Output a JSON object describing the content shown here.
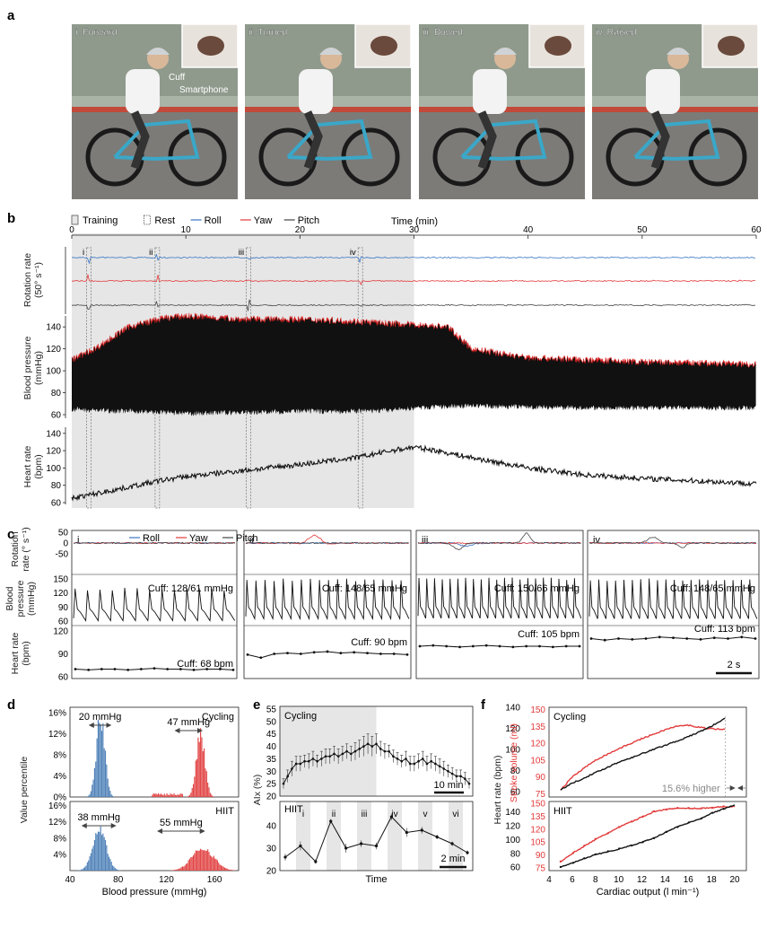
{
  "panel_labels": {
    "a": "a",
    "b": "b",
    "c": "c",
    "d": "d",
    "e": "e",
    "f": "f"
  },
  "colors": {
    "roll": "#3a76c4",
    "yaw": "#e23a3a",
    "pitch": "#444444",
    "bp_black": "#111111",
    "bp_red": "#e02020",
    "bar_blue": "#4f81b8",
    "bar_red": "#e24444",
    "shade": "#e6e6e6",
    "photo_bg": "#c9c4bb"
  },
  "panel_a": {
    "photos": [
      {
        "label": "i. Forward",
        "annotations": [
          "Cuff",
          "Smartphone"
        ]
      },
      {
        "label": "ii. Turned",
        "annotations": []
      },
      {
        "label": "iii. Bowed",
        "annotations": []
      },
      {
        "label": "iv. Raised",
        "annotations": []
      }
    ]
  },
  "panel_b": {
    "legend": [
      {
        "label": "Training",
        "kind": "shade-box"
      },
      {
        "label": "Rest",
        "kind": "box"
      },
      {
        "label": "Roll",
        "kind": "roll"
      },
      {
        "label": "Yaw",
        "kind": "yaw"
      },
      {
        "label": "Pitch",
        "kind": "pitch"
      }
    ],
    "time_label": "Time (min)",
    "ylabel_rotation": [
      "Rotation rate",
      "(50° s⁻¹)"
    ],
    "ylabel_bp": [
      "Blood pressure",
      "(mmHg)"
    ],
    "ylabel_hr": [
      "Heart rate",
      "(bpm)"
    ],
    "markers": [
      "i",
      "ii",
      "iii",
      "iv"
    ]
  },
  "panel_c": {
    "legend": [
      "Roll",
      "Yaw",
      "Pitch"
    ],
    "ylabel_rotation": [
      "Rotation",
      "rate (° s⁻¹)"
    ],
    "ylabel_bp": [
      "Blood",
      "pressure",
      "(mmHg)"
    ],
    "ylabel_hr": [
      "Heart rate",
      "(bpm)"
    ],
    "columns": [
      {
        "label": "i",
        "cuff_bp": "Cuff: 128/61 mmHg",
        "cuff_hr": "Cuff: 68 bpm"
      },
      {
        "label": "ii",
        "cuff_bp": "Cuff: 148/65 mmHg",
        "cuff_hr": "Cuff: 90 bpm"
      },
      {
        "label": "iii",
        "cuff_bp": "Cuff: 150/66 mmHg",
        "cuff_hr": "Cuff: 105 bpm"
      },
      {
        "label": "iv",
        "cuff_bp": "Cuff: 148/65 mmHg",
        "cuff_hr": "Cuff: 113 bpm"
      }
    ],
    "scale_bar": "2 s"
  },
  "panel_d": {
    "ylabel": "Value percentile",
    "xlabel": "Blood pressure (mmHg)",
    "top": {
      "title": "Cycling",
      "blue_range": "20 mmHg",
      "red_range": "47 mmHg"
    },
    "bottom": {
      "title": "HIIT",
      "blue_range": "38 mmHg",
      "red_range": "55 mmHg"
    }
  },
  "panel_e": {
    "ylabel": "AIx (%)",
    "xlabel": "Time",
    "top": {
      "title": "Cycling",
      "scale_bar": "10 min"
    },
    "bottom": {
      "title": "HIIT",
      "scale_bar": "2 min",
      "phases": [
        "i",
        "ii",
        "iii",
        "iv",
        "v",
        "vi"
      ]
    }
  },
  "panel_f": {
    "ylabel_left": "Heart rate (bpm)",
    "ylabel_right": "Stroke volume (ml)",
    "xlabel": "Cardiac output (l min⁻¹)",
    "top": {
      "title": "Cycling",
      "annotation": "15.6% higher"
    },
    "bottom": {
      "title": "HIIT"
    }
  },
  "chart_data": [
    {
      "type": "line",
      "id": "b",
      "xlabel": "Time (min)",
      "xlim": [
        0,
        60
      ],
      "xticks": [
        0,
        10,
        20,
        30,
        40,
        50,
        60
      ],
      "training_period_min": [
        0,
        30
      ],
      "event_times_min": {
        "i": 1.5,
        "ii": 7.5,
        "iii": 15.5,
        "iv": 25.3
      },
      "series": [
        {
          "name": "Blood pressure systolic envelope",
          "x": [
            0,
            2,
            5,
            8,
            10,
            15,
            20,
            25,
            28,
            30,
            33,
            35,
            40,
            45,
            50,
            55,
            60
          ],
          "values": [
            110,
            120,
            140,
            148,
            150,
            147,
            147,
            145,
            143,
            142,
            140,
            120,
            112,
            110,
            108,
            107,
            106
          ]
        },
        {
          "name": "Blood pressure diastolic envelope",
          "x": [
            0,
            2,
            5,
            8,
            10,
            15,
            20,
            25,
            28,
            30,
            35,
            40,
            45,
            50,
            55,
            60
          ],
          "values": [
            65,
            64,
            63,
            62,
            61,
            62,
            63,
            63,
            64,
            66,
            68,
            67,
            66,
            66,
            66,
            66
          ]
        },
        {
          "name": "Heart rate",
          "x": [
            0,
            2,
            5,
            8,
            10,
            15,
            20,
            25,
            28,
            30,
            32,
            35,
            40,
            45,
            50,
            55,
            60
          ],
          "values": [
            65,
            70,
            78,
            86,
            90,
            97,
            104,
            112,
            120,
            124,
            120,
            112,
            100,
            92,
            88,
            85,
            82
          ]
        }
      ],
      "ylim_bp": [
        60,
        150
      ],
      "yticks_bp": [
        60,
        80,
        100,
        120,
        140
      ],
      "ylim_hr": [
        60,
        145
      ],
      "yticks_hr": [
        60,
        80,
        100,
        120,
        140
      ]
    },
    {
      "type": "line",
      "id": "c",
      "yticks_rotation": [
        -50,
        0,
        50
      ],
      "yticks_bp": [
        60,
        90,
        120,
        150
      ],
      "yticks_hr": [
        60,
        90,
        120
      ],
      "heart_rate_traces": [
        [
          70,
          69,
          70,
          70,
          69,
          70,
          71,
          70,
          70,
          69,
          70,
          70,
          69
        ],
        [
          89,
          85,
          90,
          91,
          90,
          92,
          93,
          91,
          92,
          91,
          90,
          90,
          89
        ],
        [
          100,
          101,
          100,
          99,
          100,
          101,
          100,
          99,
          100,
          100,
          99,
          100,
          100
        ],
        [
          110,
          108,
          110,
          109,
          110,
          112,
          111,
          110,
          109,
          111,
          110,
          112,
          110
        ]
      ],
      "bp_systolic": [
        128,
        148,
        150,
        148
      ],
      "bp_diastolic": [
        61,
        65,
        66,
        65
      ],
      "beats_per_window": [
        13,
        18,
        21,
        20
      ]
    },
    {
      "type": "bar",
      "id": "d",
      "xlabel": "Blood pressure (mmHg)",
      "ylabel": "Value percentile",
      "xlim": [
        40,
        180
      ],
      "xticks": [
        40,
        80,
        120,
        160
      ],
      "ylim": [
        0,
        17
      ],
      "yticks": [
        0,
        4,
        8,
        12,
        16
      ],
      "yticklabels": [
        "0%",
        "4%",
        "8%",
        "12%",
        "16%"
      ],
      "panels": [
        {
          "name": "Cycling",
          "diastolic_peak": {
            "center": 65,
            "height": 15,
            "sd": 3.5
          },
          "systolic_peak": {
            "center": 148,
            "height": 12,
            "sd": 3.5
          },
          "systolic_tail_from": 108
        },
        {
          "name": "HIIT",
          "diastolic_peak": {
            "center": 64,
            "height": 10.5,
            "sd": 5.5
          },
          "systolic_peak": {
            "center": 150,
            "height": 5.5,
            "sd": 9
          }
        }
      ]
    },
    {
      "type": "line",
      "id": "e",
      "ylabel": "AIx (%)",
      "top": {
        "title": "Cycling",
        "ylim": [
          20,
          55
        ],
        "yticks": [
          20,
          25,
          30,
          35,
          40,
          45,
          50,
          55
        ],
        "values": [
          25,
          28,
          31,
          33,
          33,
          34,
          34,
          35,
          34,
          35,
          36,
          36,
          37,
          36,
          37,
          38,
          37,
          38,
          39,
          40,
          41,
          40,
          41,
          39,
          38,
          38,
          36,
          35,
          34,
          35,
          33,
          33,
          34,
          35,
          33,
          34,
          33,
          32,
          31,
          30,
          29,
          28,
          28,
          27,
          25
        ],
        "error": [
          2,
          2.5,
          3,
          3,
          3,
          2.5,
          3,
          3,
          2.5,
          3,
          3,
          3,
          3,
          3,
          3,
          3,
          3,
          3.5,
          3.5,
          4,
          4,
          4,
          4,
          3,
          3,
          2.5,
          2.5,
          2.5,
          2.5,
          3,
          3,
          3,
          3,
          3,
          3,
          3,
          3,
          3,
          3,
          2.5,
          2.5,
          2.5,
          2.5,
          2.5,
          2
        ]
      },
      "bottom": {
        "title": "HIIT",
        "ylim": [
          20,
          50
        ],
        "yticks": [
          20,
          30,
          40
        ],
        "values": [
          26,
          31,
          24,
          42,
          30,
          32,
          31,
          44,
          37,
          38,
          35,
          32,
          28
        ],
        "error": [
          1.5,
          2,
          1,
          1,
          2,
          1.5,
          1.5,
          1.5,
          2,
          1.5,
          1,
          1,
          1
        ]
      }
    },
    {
      "type": "line",
      "id": "f",
      "xlabel": "Cardiac output (l min⁻¹)",
      "xlim": [
        4,
        21
      ],
      "xticks": [
        4,
        6,
        8,
        10,
        12,
        14,
        16,
        18,
        20
      ],
      "top": {
        "name": "Cycling",
        "hr_ylim": [
          55,
          140
        ],
        "hr_yticks": [
          60,
          80,
          100,
          120,
          140
        ],
        "sv_ticks": [
          75,
          90,
          105,
          120,
          135,
          150
        ],
        "heart_rate": {
          "x": [
            5,
            6,
            8,
            10,
            12,
            14,
            16,
            18,
            19.2
          ],
          "values": [
            62,
            68,
            78,
            88,
            96,
            104,
            112,
            122,
            130
          ]
        },
        "stroke_volume": {
          "x": [
            5,
            6,
            8,
            10,
            12,
            14,
            15,
            16,
            17,
            18,
            19.2
          ],
          "values": [
            78,
            90,
            105,
            115,
            124,
            132,
            135,
            136,
            134,
            133,
            132
          ]
        }
      },
      "bottom": {
        "name": "HIIT",
        "hr_ylim": [
          55,
          155
        ],
        "hr_yticks": [
          60,
          80,
          100,
          120,
          140
        ],
        "sv_ticks": [
          75,
          90,
          105,
          120,
          135,
          150
        ],
        "heart_rate": {
          "x": [
            5,
            6,
            8,
            10,
            12,
            13,
            14,
            15,
            16,
            17,
            18,
            19,
            20
          ],
          "values": [
            60,
            66,
            78,
            86,
            96,
            102,
            110,
            118,
            124,
            130,
            138,
            144,
            150
          ]
        },
        "stroke_volume": {
          "x": [
            5,
            6,
            8,
            10,
            12,
            13,
            14,
            15,
            16,
            17,
            18,
            19,
            20
          ],
          "values": [
            82,
            92,
            108,
            122,
            134,
            140,
            143,
            144,
            144,
            144,
            145,
            146,
            146
          ]
        }
      }
    }
  ]
}
